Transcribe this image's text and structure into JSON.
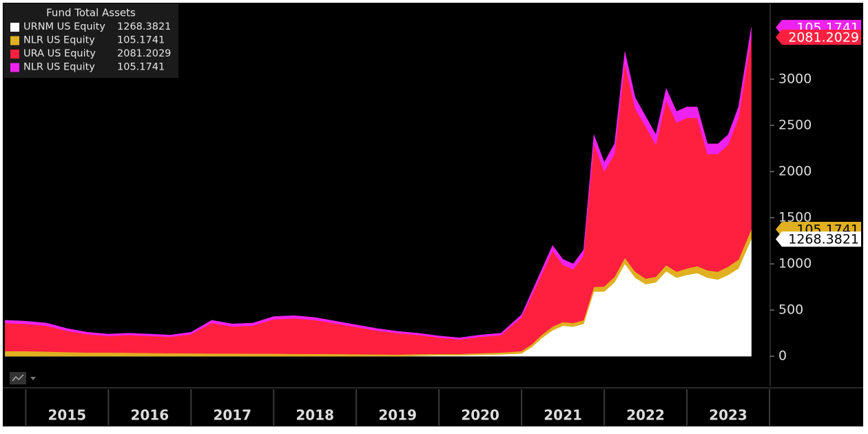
{
  "chart_data": {
    "type": "area",
    "stacked": true,
    "legend_title": "Fund Total Assets",
    "legend_position": "upper left",
    "grid": false,
    "x": [
      2014.75,
      2015.0,
      2015.25,
      2015.5,
      2015.75,
      2016.0,
      2016.25,
      2016.5,
      2016.75,
      2017.0,
      2017.25,
      2017.5,
      2017.75,
      2018.0,
      2018.25,
      2018.5,
      2018.75,
      2019.0,
      2019.25,
      2019.5,
      2019.75,
      2020.0,
      2020.25,
      2020.5,
      2020.75,
      2021.0,
      2021.125,
      2021.25,
      2021.375,
      2021.5,
      2021.625,
      2021.75,
      2021.875,
      2022.0,
      2022.125,
      2022.25,
      2022.375,
      2022.5,
      2022.625,
      2022.75,
      2022.875,
      2023.0,
      2023.125,
      2023.25,
      2023.375,
      2023.5,
      2023.625,
      2023.78
    ],
    "xlim": [
      2014.73,
      2024.0
    ],
    "xticks": [
      2015,
      2016,
      2017,
      2018,
      2019,
      2020,
      2021,
      2022,
      2023
    ],
    "ylim": [
      -320,
      3820
    ],
    "yticks": [
      0,
      500,
      1000,
      1500,
      2000,
      2500,
      3000
    ],
    "series": [
      {
        "name": "URNM US Equity",
        "color": "#ffffff",
        "values": [
          0,
          0,
          0,
          0,
          0,
          0,
          0,
          0,
          0,
          0,
          0,
          0,
          0,
          0,
          0,
          0,
          0,
          0,
          0,
          0,
          5,
          10,
          10,
          15,
          20,
          30,
          100,
          200,
          280,
          330,
          320,
          350,
          700,
          700,
          800,
          1000,
          850,
          780,
          800,
          920,
          850,
          880,
          900,
          850,
          830,
          880,
          950,
          1268.3821
        ]
      },
      {
        "name": "NLR US Equity",
        "color": "#e0b020",
        "values": [
          55,
          55,
          50,
          45,
          40,
          40,
          38,
          35,
          33,
          32,
          30,
          30,
          28,
          28,
          26,
          25,
          24,
          22,
          20,
          18,
          18,
          15,
          15,
          18,
          20,
          25,
          30,
          35,
          40,
          40,
          40,
          40,
          50,
          55,
          60,
          65,
          65,
          60,
          60,
          65,
          65,
          70,
          75,
          80,
          85,
          90,
          95,
          105.1741
        ]
      },
      {
        "name": "URA US Equity",
        "color": "#ff2040",
        "values": [
          305,
          295,
          280,
          230,
          198,
          180,
          192,
          185,
          177,
          206,
          330,
          292,
          304,
          372,
          384,
          367,
          330,
          294,
          258,
          232,
          207,
          177,
          157,
          177,
          188,
          365,
          530,
          665,
          820,
          620,
          580,
          700,
          1550,
          1245,
          1330,
          2105,
          1765,
          1650,
          1430,
          1785,
          1615,
          1630,
          1605,
          1260,
          1275,
          1320,
          1535,
          2081.2029
        ]
      },
      {
        "name": "NLR US Equity",
        "color": "#ee22ee",
        "values": [
          30,
          30,
          30,
          25,
          22,
          20,
          20,
          20,
          20,
          22,
          30,
          28,
          28,
          30,
          30,
          28,
          26,
          24,
          22,
          20,
          20,
          18,
          18,
          20,
          22,
          30,
          40,
          50,
          60,
          60,
          60,
          60,
          100,
          100,
          110,
          130,
          120,
          110,
          110,
          130,
          120,
          120,
          120,
          110,
          110,
          110,
          120,
          105.1741
        ]
      }
    ]
  }
}
